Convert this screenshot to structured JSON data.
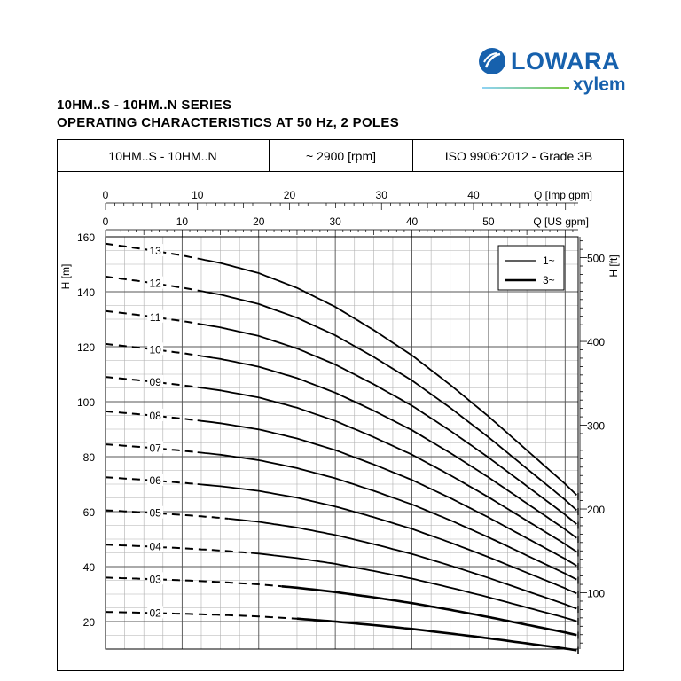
{
  "brand": {
    "name": "LOWARA",
    "sub": "xylem",
    "color": "#1761ad"
  },
  "title_line1": "10HM..S - 10HM..N SERIES",
  "title_line2": "OPERATING CHARACTERISTICS AT 50 Hz, 2 POLES",
  "header": {
    "model": "10HM..S - 10HM..N",
    "speed": "~ 2900 [rpm]",
    "standard": "ISO 9906:2012 - Grade 3B"
  },
  "chart_data": {
    "type": "line",
    "x_top_imp": {
      "label": "Q [Imp gpm]",
      "ticks": [
        0,
        10,
        20,
        30,
        40
      ],
      "range": [
        0,
        51.4
      ]
    },
    "x_top_us": {
      "label": "Q [US gpm]",
      "ticks": [
        0,
        10,
        20,
        30,
        40,
        50
      ],
      "range": [
        0,
        61.7
      ]
    },
    "y_left": {
      "label": "H [m]",
      "ticks": [
        20,
        40,
        60,
        80,
        100,
        120,
        140,
        160
      ],
      "range": [
        10,
        160
      ]
    },
    "y_right": {
      "label": "H [ft]",
      "ticks": [
        100,
        200,
        300,
        400,
        500
      ]
    },
    "legend": {
      "position": "top-right",
      "entries": [
        {
          "label": "1~",
          "style": "thin"
        },
        {
          "label": "3~",
          "style": "thick"
        }
      ]
    },
    "grid": true,
    "curve_shape": {
      "q_us": [
        0,
        5,
        10,
        15,
        20,
        25,
        30,
        35,
        40,
        45,
        50,
        55,
        60,
        61.7
      ],
      "rel_h": [
        1.0,
        0.987,
        0.972,
        0.954,
        0.93,
        0.895,
        0.85,
        0.795,
        0.735,
        0.665,
        0.59,
        0.51,
        0.43,
        0.4
      ],
      "dashed_until_q_us": [
        25,
        23,
        19,
        16,
        12,
        12,
        12,
        12,
        12,
        12,
        12,
        12
      ]
    },
    "series": [
      {
        "name": "02",
        "shutoff_m": 23.5,
        "end_m": 9.5
      },
      {
        "name": "03",
        "shutoff_m": 36.0,
        "end_m": 15.0
      },
      {
        "name": "04",
        "shutoff_m": 48.0,
        "end_m": 20.0
      },
      {
        "name": "05",
        "shutoff_m": 60.5,
        "end_m": 24.5
      },
      {
        "name": "06",
        "shutoff_m": 72.5,
        "end_m": 30.0
      },
      {
        "name": "07",
        "shutoff_m": 84.5,
        "end_m": 35.0
      },
      {
        "name": "08",
        "shutoff_m": 96.5,
        "end_m": 40.0
      },
      {
        "name": "09",
        "shutoff_m": 109.0,
        "end_m": 45.0
      },
      {
        "name": "10",
        "shutoff_m": 121.0,
        "end_m": 50.0
      },
      {
        "name": "11",
        "shutoff_m": 133.0,
        "end_m": 55.0
      },
      {
        "name": "12",
        "shutoff_m": 145.5,
        "end_m": 60.0
      },
      {
        "name": "13",
        "shutoff_m": 157.5,
        "end_m": 65.5
      }
    ]
  }
}
